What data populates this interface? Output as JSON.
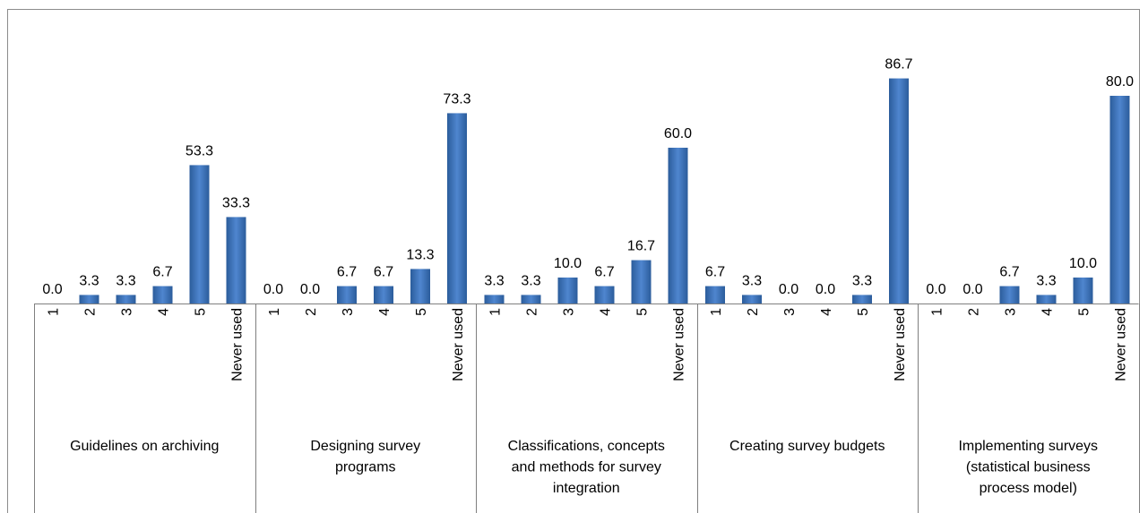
{
  "chart_data": {
    "type": "bar",
    "groups": [
      {
        "name": "Guidelines on archiving",
        "lines": [
          "Guidelines on archiving"
        ]
      },
      {
        "name": "Designing survey programs",
        "lines": [
          "Designing survey",
          "programs"
        ]
      },
      {
        "name": "Classifications,  concepts and methods for survey integration",
        "lines": [
          "Classifications,  concepts",
          "and methods for survey",
          "integration"
        ]
      },
      {
        "name": "Creating survey budgets",
        "lines": [
          "Creating survey budgets"
        ]
      },
      {
        "name": "Implementing surveys (statistical business process model)",
        "lines": [
          "Implementing surveys",
          "(statistical business",
          "process model)"
        ]
      }
    ],
    "categories": [
      "1",
      "2",
      "3",
      "4",
      "5",
      "Never used"
    ],
    "values": [
      [
        0.0,
        3.3,
        3.3,
        6.7,
        53.3,
        33.3
      ],
      [
        0.0,
        0.0,
        6.7,
        6.7,
        13.3,
        73.3
      ],
      [
        3.3,
        3.3,
        10.0,
        6.7,
        16.7,
        60.0
      ],
      [
        6.7,
        3.3,
        0.0,
        0.0,
        3.3,
        86.7
      ],
      [
        0.0,
        0.0,
        6.7,
        3.3,
        10.0,
        80.0
      ]
    ],
    "value_labels": [
      [
        "0.0",
        "3.3",
        "3.3",
        "6.7",
        "53.3",
        "33.3"
      ],
      [
        "0.0",
        "0.0",
        "6.7",
        "6.7",
        "13.3",
        "73.3"
      ],
      [
        "3.3",
        "3.3",
        "10.0",
        "6.7",
        "16.7",
        "60.0"
      ],
      [
        "6.7",
        "3.3",
        "0.0",
        "0.0",
        "3.3",
        "86.7"
      ],
      [
        "0.0",
        "0.0",
        "6.7",
        "3.3",
        "10.0",
        "80.0"
      ]
    ],
    "ylim": [
      0,
      100
    ],
    "grid": false,
    "legend": "none",
    "colors": {
      "bar_top": "#4f86cf",
      "bar_bottom": "#2b5c9b",
      "axis": "#7f7f7f",
      "border": "#8c8c8c"
    }
  }
}
